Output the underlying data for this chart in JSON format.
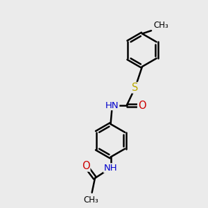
{
  "background_color": "#ebebeb",
  "bond_color": "#000000",
  "bond_width": 1.8,
  "atom_colors": {
    "N": "#0000cc",
    "O": "#cc0000",
    "S": "#bbaa00",
    "C": "#000000"
  },
  "font_size": 9.5,
  "fig_width": 3.0,
  "fig_height": 3.0,
  "dpi": 100,
  "xlim": [
    0,
    10
  ],
  "ylim": [
    0,
    10
  ]
}
